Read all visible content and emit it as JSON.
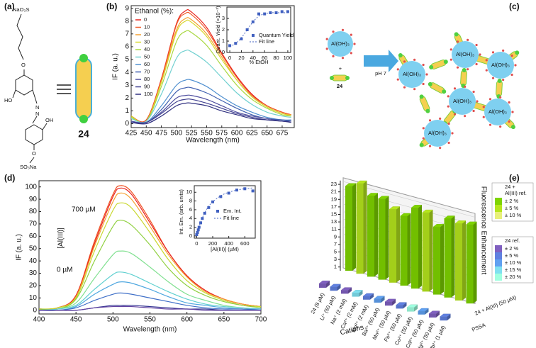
{
  "panels": [
    "(a)",
    "(b)",
    "(c)",
    "(d)",
    "(e)"
  ],
  "panel_a": {
    "atoms": [
      "NaO₃S",
      "O",
      "HO",
      "N",
      "N",
      "OH",
      "O",
      "SO₃Na"
    ],
    "compound": "24"
  },
  "panel_c": {
    "reactant": "Al(OH)₃",
    "plus": "+",
    "ligand": "24",
    "condition": "pH 7",
    "network_nodes": [
      "Al(OH)₃",
      "Al(OH)₃",
      "Al(OH)₃",
      "Al(OH)₃",
      "Al(OH)₃",
      "Al(OH)₃"
    ]
  },
  "chart_data": [
    {
      "type": "line",
      "x_label": "Wavelength (nm)",
      "y_label": "IF (a. u.)",
      "legend_title": "Ethanol (%):",
      "xlim": [
        425,
        695
      ],
      "xticks": [
        425,
        450,
        475,
        500,
        525,
        550,
        575,
        600,
        625,
        650,
        675
      ],
      "ylim": [
        -0.3,
        9.2
      ],
      "yticks": [
        0,
        1,
        2,
        3,
        4,
        5,
        6,
        7,
        8,
        9
      ],
      "x": [
        425,
        450,
        475,
        500,
        515,
        525,
        550,
        575,
        600,
        625,
        650,
        675,
        690
      ],
      "series": [
        {
          "name": "0",
          "color": "#e8231e",
          "values": [
            0.6,
            0.3,
            3.5,
            7.8,
            8.8,
            8.7,
            7.5,
            5.5,
            3.7,
            2.3,
            1.4,
            0.9,
            0.7
          ]
        },
        {
          "name": "10",
          "color": "#f05a28",
          "values": [
            0.6,
            0.3,
            3.4,
            7.7,
            8.6,
            8.5,
            7.3,
            5.4,
            3.6,
            2.2,
            1.4,
            0.9,
            0.7
          ]
        },
        {
          "name": "20",
          "color": "#f5a030",
          "values": [
            0.6,
            0.2,
            3.3,
            7.3,
            8.2,
            8.1,
            7.0,
            5.2,
            3.4,
            2.1,
            1.3,
            0.8,
            0.7
          ]
        },
        {
          "name": "30",
          "color": "#d8d830",
          "values": [
            0.6,
            0.2,
            3.2,
            7.1,
            8.0,
            7.9,
            6.8,
            5.0,
            3.4,
            2.1,
            1.3,
            0.8,
            0.6
          ]
        },
        {
          "name": "40",
          "color": "#a8d840",
          "values": [
            0.5,
            0.2,
            2.9,
            6.4,
            7.2,
            7.1,
            6.1,
            4.5,
            3.0,
            1.9,
            1.2,
            0.7,
            0.6
          ]
        },
        {
          "name": "50",
          "color": "#70d0d0",
          "values": [
            0.4,
            0.2,
            2.3,
            5.1,
            5.7,
            5.6,
            4.8,
            3.6,
            2.4,
            1.5,
            0.9,
            0.6,
            0.5
          ]
        },
        {
          "name": "60",
          "color": "#5090d0",
          "values": [
            0.2,
            0.1,
            1.4,
            3.0,
            3.4,
            3.4,
            2.9,
            2.1,
            1.4,
            0.9,
            0.5,
            0.3,
            0.3
          ]
        },
        {
          "name": "70",
          "color": "#4060b0",
          "values": [
            0.2,
            0.1,
            1.1,
            2.5,
            2.8,
            2.8,
            2.4,
            1.8,
            1.2,
            0.7,
            0.4,
            0.3,
            0.2
          ]
        },
        {
          "name": "80",
          "color": "#5050a0",
          "values": [
            0.2,
            0.1,
            0.9,
            2.0,
            2.2,
            2.2,
            1.9,
            1.4,
            0.9,
            0.6,
            0.4,
            0.2,
            0.2
          ]
        },
        {
          "name": "90",
          "color": "#404090",
          "values": [
            0.1,
            0.1,
            0.8,
            1.7,
            1.9,
            1.9,
            1.6,
            1.2,
            0.8,
            0.5,
            0.3,
            0.2,
            0.2
          ]
        },
        {
          "name": "100",
          "color": "#303080",
          "values": [
            0.1,
            0.0,
            0.6,
            1.4,
            1.6,
            1.6,
            1.4,
            1.0,
            0.7,
            0.4,
            0.3,
            0.2,
            0.1
          ]
        }
      ]
    },
    {
      "type": "scatter",
      "x_label": "% EtOH",
      "y_label": "Quant. Yield (×10⁻³)",
      "xlim": [
        -5,
        105
      ],
      "xticks": [
        0,
        20,
        40,
        60,
        80,
        100
      ],
      "ylim": [
        0,
        4
      ],
      "yticks": [
        0,
        1,
        2,
        3
      ],
      "x": [
        0,
        10,
        20,
        30,
        40,
        50,
        60,
        70,
        80,
        90,
        100
      ],
      "series": [
        {
          "name": "Quantum Yield",
          "color": "#4060c0",
          "marker": "square",
          "values": [
            0.6,
            0.8,
            1.2,
            2.0,
            2.7,
            3.4,
            3.4,
            3.5,
            3.5,
            3.6,
            3.6
          ]
        },
        {
          "name": "Fit line",
          "color": "#4060c0",
          "line_style": "dashed",
          "values": [
            0.5,
            0.8,
            1.3,
            2.0,
            2.7,
            3.2,
            3.4,
            3.5,
            3.5,
            3.5,
            3.5
          ]
        }
      ]
    },
    {
      "type": "line",
      "x_label": "Wavelength (nm)",
      "y_label": "IF (a. u.)",
      "annotations": [
        "700 µM",
        "[Al(III)]",
        "0 µM"
      ],
      "xlim": [
        400,
        700
      ],
      "xticks": [
        400,
        450,
        500,
        550,
        600,
        650,
        700
      ],
      "ylim": [
        -3,
        105
      ],
      "yticks": [
        0,
        10,
        20,
        30,
        40,
        50,
        60,
        70,
        80,
        90,
        100
      ],
      "x": [
        400,
        425,
        450,
        475,
        500,
        510,
        525,
        550,
        575,
        600,
        625,
        650,
        675,
        700
      ],
      "series": [
        {
          "color": "#f05020",
          "values": [
            1,
            2,
            12,
            56,
            94,
            101,
            96,
            73,
            47,
            28,
            16,
            9,
            5,
            3
          ]
        },
        {
          "color": "#e82020",
          "values": [
            1,
            2,
            12,
            54,
            92,
            99,
            94,
            71,
            47,
            28,
            16,
            9,
            5,
            3
          ]
        },
        {
          "color": "#f5a030",
          "values": [
            1,
            2,
            11,
            52,
            88,
            95,
            90,
            68,
            45,
            27,
            15,
            9,
            5,
            3
          ]
        },
        {
          "color": "#c8d830",
          "values": [
            1,
            2,
            10,
            48,
            81,
            87,
            83,
            63,
            41,
            24,
            14,
            8,
            4,
            3
          ]
        },
        {
          "color": "#90d040",
          "values": [
            1,
            1,
            9,
            40,
            68,
            73,
            69,
            53,
            34,
            20,
            12,
            7,
            4,
            2
          ]
        },
        {
          "color": "#80e090",
          "values": [
            0,
            1,
            6,
            26,
            45,
            48,
            46,
            35,
            23,
            13,
            8,
            4,
            2,
            1
          ]
        },
        {
          "color": "#60d0d0",
          "values": [
            0,
            1,
            4,
            17,
            29,
            31,
            29,
            22,
            15,
            9,
            5,
            3,
            2,
            1
          ]
        },
        {
          "color": "#50a8e0",
          "values": [
            0,
            0,
            3,
            13,
            21,
            23,
            22,
            17,
            11,
            6,
            4,
            2,
            1,
            1
          ]
        },
        {
          "color": "#4070c8",
          "values": [
            0,
            0,
            2,
            8,
            13,
            14,
            13,
            10,
            7,
            4,
            2,
            1,
            1,
            0
          ]
        },
        {
          "color": "#303090",
          "values": [
            0,
            0,
            0,
            2,
            4,
            4,
            4,
            3,
            2,
            1,
            1,
            0,
            0,
            0
          ]
        },
        {
          "color": "#6040a0",
          "values": [
            0,
            0,
            0,
            2,
            3,
            3,
            3,
            2,
            1,
            1,
            0,
            0,
            0,
            0
          ]
        }
      ]
    },
    {
      "type": "scatter",
      "x_label": "[Al(III)] (µM)",
      "y_label": "Int. Em. (arb. units)",
      "xlim": [
        -30,
        730
      ],
      "xticks": [
        0,
        200,
        400,
        600
      ],
      "ylim": [
        -0.5,
        11.5
      ],
      "yticks": [
        0,
        2,
        4,
        6,
        8,
        10
      ],
      "x": [
        0,
        10,
        20,
        30,
        50,
        70,
        100,
        150,
        200,
        300,
        400,
        500,
        600,
        700
      ],
      "series": [
        {
          "name": "Em. Int.",
          "color": "#4060c0",
          "marker": "square",
          "values": [
            0.3,
            0.8,
            1.4,
            2.0,
            3.0,
            4.0,
            5.2,
            6.5,
            7.8,
            9.0,
            9.8,
            10.5,
            10.8,
            10.3
          ]
        },
        {
          "name": "Fit line",
          "color": "#4060c0",
          "line_style": "dashed",
          "values": [
            0,
            0.8,
            1.5,
            2.1,
            3.2,
            4.1,
            5.3,
            6.8,
            7.8,
            9.2,
            10.0,
            10.5,
            10.8,
            11.0
          ]
        }
      ]
    },
    {
      "type": "bar3d",
      "x_label": "Cations",
      "z_label": "Fluorescence Enhancement",
      "grid": true,
      "zlim": [
        0,
        24
      ],
      "zticks": [
        1,
        3,
        5,
        7,
        9,
        11,
        13,
        15,
        17,
        19,
        21,
        23
      ],
      "categories": [
        "24 (8 µM)",
        "Li⁺ (50 µM)",
        "Na⁺ (2 mM)",
        "Ca²⁺ (2 mM)",
        "Mg²⁺ (2 mM)",
        "Ba²⁺ (50 µM)",
        "Mn²⁺ (50 µM)",
        "Fe²⁺ (50 µM)",
        "Co²⁺ (50 µM)",
        "Cd²⁺ (50 µM)",
        "Hg²⁺ (50 µM)",
        "Pb²⁺ (1 µM)"
      ],
      "series": [
        {
          "name": "24 + Al(III) (50 µM)",
          "values": [
            22.5,
            24,
            21.5,
            21.5,
            19.5,
            18.5,
            21.5,
            21,
            18,
            21,
            20.5,
            21
          ],
          "colors": [
            "#7fd400",
            "#b5e61d",
            "#7fd400",
            "#7fd400",
            "#b5e61d",
            "#7fd400",
            "#7fd400",
            "#b5e61d",
            "#7fd400",
            "#7fd400",
            "#b5e61d",
            "#7fd400"
          ]
        },
        {
          "name": "PSSA",
          "values": [
            1.1,
            1.0,
            0.9,
            1.0,
            0.9,
            1.0,
            1.0,
            0.9,
            1.1,
            0.9,
            1.0,
            1.0
          ],
          "colors": [
            "#8060c0",
            "#6080e0",
            "#8060c0",
            "#80e0f0",
            "#6080e0",
            "#60a0f0",
            "#8060c0",
            "#6080e0",
            "#a0ffe0",
            "#60a0f0",
            "#8060c0",
            "#6080e0"
          ]
        }
      ],
      "legend_groups": [
        {
          "title_lines": [
            "24 +",
            "Al(III) ref."
          ],
          "items": [
            {
              "label": "± 2 %",
              "color": "#7fd400"
            },
            {
              "label": "± 5 %",
              "color": "#b5e61d"
            },
            {
              "label": "± 10 %",
              "color": "#e8f07a"
            }
          ]
        },
        {
          "title_lines": [
            "24 ref."
          ],
          "items": [
            {
              "label": "± 2 %",
              "color": "#8060c0"
            },
            {
              "label": "± 5 %",
              "color": "#6080e0"
            },
            {
              "label": "± 10 %",
              "color": "#60a0f0"
            },
            {
              "label": "± 15 %",
              "color": "#80e0f0"
            },
            {
              "label": "± 20 %",
              "color": "#a0ffe0"
            }
          ]
        }
      ]
    }
  ]
}
